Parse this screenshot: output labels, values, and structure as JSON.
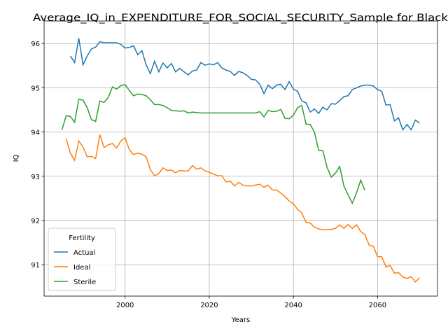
{
  "chart_data": {
    "type": "line",
    "title": "Average_IQ_in_EXPENDITURE_FOR_SOCIAL_SECURITY_Sample for Black",
    "x_label": "Years",
    "y_label": "IQ",
    "x": [
      1985,
      1986,
      1987,
      1988,
      1989,
      1990,
      1991,
      1992,
      1993,
      1994,
      1995,
      1996,
      1997,
      1998,
      1999,
      2000,
      2001,
      2002,
      2003,
      2004,
      2005,
      2006,
      2007,
      2008,
      2009,
      2010,
      2011,
      2012,
      2013,
      2014,
      2015,
      2016,
      2017,
      2018,
      2019,
      2020,
      2021,
      2022,
      2023,
      2024,
      2025,
      2026,
      2027,
      2028,
      2029,
      2030,
      2031,
      2032,
      2033,
      2034,
      2035,
      2036,
      2037,
      2038,
      2039,
      2040,
      2041,
      2042,
      2043,
      2044,
      2045,
      2046,
      2047,
      2048,
      2049,
      2050,
      2051,
      2052,
      2053,
      2054,
      2055,
      2056,
      2057,
      2058,
      2059,
      2060,
      2061,
      2062,
      2063,
      2064,
      2065,
      2066,
      2067,
      2068,
      2069,
      2070
    ],
    "series": [
      {
        "name": "Actual",
        "color": "#1f77b4",
        "values": [
          null,
          null,
          95.72,
          95.57,
          96.12,
          95.52,
          95.72,
          95.88,
          95.92,
          96.04,
          96.02,
          96.02,
          96.02,
          96.02,
          95.98,
          95.9,
          95.91,
          95.95,
          95.75,
          95.84,
          95.52,
          95.32,
          95.6,
          95.36,
          95.56,
          95.45,
          95.55,
          95.36,
          95.44,
          95.36,
          95.29,
          95.38,
          95.4,
          95.57,
          95.51,
          95.54,
          95.52,
          95.57,
          95.45,
          95.4,
          95.37,
          95.28,
          95.37,
          95.34,
          95.28,
          95.19,
          95.18,
          95.08,
          94.87,
          95.06,
          94.98,
          95.06,
          95.08,
          94.96,
          95.14,
          94.97,
          94.92,
          94.7,
          94.66,
          94.45,
          94.52,
          94.42,
          94.56,
          94.5,
          94.64,
          94.63,
          94.71,
          94.8,
          94.82,
          94.96,
          95.0,
          95.04,
          95.06,
          95.06,
          95.04,
          94.96,
          94.92,
          94.61,
          94.62,
          94.25,
          94.32,
          94.05,
          94.17,
          94.05,
          94.27,
          94.2
        ]
      },
      {
        "name": "Ideal",
        "color": "#ff7f0e",
        "values": [
          null,
          93.85,
          93.52,
          93.36,
          93.8,
          93.66,
          93.44,
          93.45,
          93.4,
          93.94,
          93.65,
          93.71,
          93.74,
          93.64,
          93.8,
          93.87,
          93.6,
          93.49,
          93.52,
          93.5,
          93.44,
          93.15,
          93.01,
          93.06,
          93.19,
          93.13,
          93.14,
          93.08,
          93.13,
          93.12,
          93.12,
          93.24,
          93.16,
          93.19,
          93.12,
          93.09,
          93.05,
          93.01,
          93.01,
          92.87,
          92.89,
          92.78,
          92.86,
          92.8,
          92.78,
          92.78,
          92.8,
          92.82,
          92.75,
          92.8,
          92.69,
          92.69,
          92.62,
          92.54,
          92.44,
          92.38,
          92.25,
          92.17,
          91.96,
          91.94,
          91.85,
          91.81,
          91.79,
          91.79,
          91.8,
          91.82,
          91.9,
          91.82,
          91.91,
          91.82,
          91.9,
          91.75,
          91.68,
          91.44,
          91.42,
          91.18,
          91.18,
          90.95,
          90.98,
          90.81,
          90.82,
          90.72,
          90.69,
          90.73,
          90.61,
          90.71
        ]
      },
      {
        "name": "Sterile",
        "color": "#2ca02c",
        "values": [
          94.05,
          94.37,
          94.35,
          94.22,
          94.74,
          94.72,
          94.55,
          94.28,
          94.24,
          94.7,
          94.67,
          94.78,
          95.02,
          94.97,
          95.05,
          95.07,
          94.94,
          94.82,
          94.86,
          94.85,
          94.82,
          94.73,
          94.62,
          94.62,
          94.6,
          94.55,
          94.49,
          94.48,
          94.47,
          94.48,
          94.43,
          94.45,
          94.44,
          94.43,
          94.43,
          94.43,
          94.43,
          94.43,
          94.43,
          94.43,
          94.43,
          94.43,
          94.43,
          94.43,
          94.43,
          94.43,
          94.43,
          94.46,
          94.34,
          94.49,
          94.46,
          94.47,
          94.51,
          94.31,
          94.3,
          94.38,
          94.55,
          94.6,
          94.18,
          94.17,
          94.0,
          93.58,
          93.58,
          93.2,
          92.98,
          93.07,
          93.22,
          92.78,
          92.58,
          92.39,
          92.62,
          92.91,
          92.68,
          null,
          null,
          null,
          null,
          null,
          null,
          null,
          null,
          null,
          null,
          null,
          null,
          null
        ]
      }
    ],
    "xlim": [
      1980.75,
      2074.25
    ],
    "xticks": [
      2000,
      2020,
      2040,
      2060
    ],
    "ylim": [
      90.29,
      96.51
    ],
    "yticks": [
      91,
      92,
      93,
      94,
      95,
      96
    ],
    "grid": true,
    "legend_title": "Fertility",
    "legend_position": "lower left"
  }
}
